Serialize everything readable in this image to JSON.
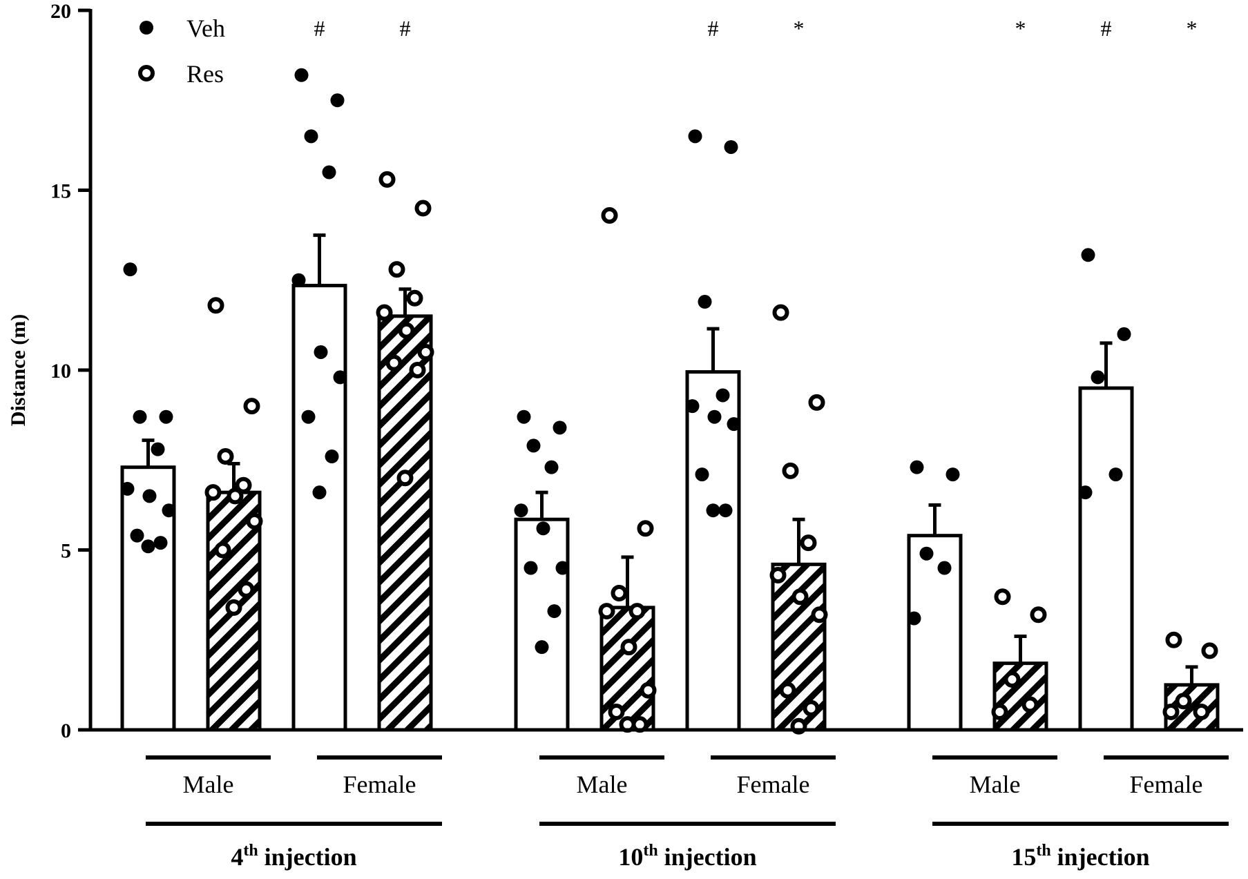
{
  "chart_data": {
    "type": "bar",
    "ylabel": "Distance (m)",
    "ylim": [
      0,
      20
    ],
    "yticks": [
      0,
      5,
      10,
      15,
      20
    ],
    "legend": {
      "position": "top-left",
      "entries": [
        {
          "name": "Veh",
          "marker": "filled-circle"
        },
        {
          "name": "Res",
          "marker": "open-circle"
        }
      ]
    },
    "injections": [
      {
        "label_prefix": "4",
        "label_sup": "th",
        "label_suffix": " injection",
        "sexes": [
          {
            "label": "Male",
            "bars": [
              {
                "treatment": "Veh",
                "mean": 7.3,
                "sem": 0.75,
                "significance": "",
                "points": [
                  12.8,
                  8.7,
                  8.7,
                  7.8,
                  6.7,
                  6.5,
                  6.1,
                  5.4,
                  5.2,
                  5.1
                ]
              },
              {
                "treatment": "Res",
                "mean": 6.6,
                "sem": 0.8,
                "significance": "",
                "points": [
                  11.8,
                  9.0,
                  7.6,
                  6.8,
                  6.6,
                  6.5,
                  5.8,
                  5.0,
                  3.9,
                  3.4
                ]
              }
            ]
          },
          {
            "label": "Female",
            "bars": [
              {
                "treatment": "Veh",
                "mean": 12.35,
                "sem": 1.4,
                "significance": "#",
                "points": [
                  18.2,
                  17.5,
                  16.5,
                  15.5,
                  12.5,
                  10.5,
                  9.8,
                  8.7,
                  7.6,
                  6.6
                ]
              },
              {
                "treatment": "Res",
                "mean": 11.5,
                "sem": 0.75,
                "significance": "#",
                "points": [
                  15.3,
                  14.5,
                  12.8,
                  12.0,
                  11.6,
                  11.1,
                  10.5,
                  10.2,
                  10.0,
                  7.0
                ]
              }
            ]
          }
        ]
      },
      {
        "label_prefix": "10",
        "label_sup": "th",
        "label_suffix": " injection",
        "sexes": [
          {
            "label": "Male",
            "bars": [
              {
                "treatment": "Veh",
                "mean": 5.85,
                "sem": 0.75,
                "significance": "",
                "points": [
                  8.7,
                  8.4,
                  7.9,
                  7.3,
                  6.1,
                  5.6,
                  4.5,
                  4.5,
                  3.3,
                  2.3
                ]
              },
              {
                "treatment": "Res",
                "mean": 3.4,
                "sem": 1.4,
                "significance": "",
                "points": [
                  14.3,
                  5.6,
                  3.8,
                  3.3,
                  3.3,
                  2.3,
                  1.1,
                  0.5,
                  0.15,
                  0.15
                ]
              }
            ]
          },
          {
            "label": "Female",
            "bars": [
              {
                "treatment": "Veh",
                "mean": 9.95,
                "sem": 1.2,
                "significance": "#",
                "points": [
                  16.5,
                  16.2,
                  11.9,
                  9.3,
                  9.0,
                  8.7,
                  8.5,
                  7.1,
                  6.1,
                  6.1
                ]
              },
              {
                "treatment": "Res",
                "mean": 4.6,
                "sem": 1.25,
                "significance": "*",
                "points": [
                  11.6,
                  9.1,
                  7.2,
                  5.2,
                  4.3,
                  3.7,
                  3.2,
                  1.1,
                  0.6,
                  0.1
                ]
              }
            ]
          }
        ]
      },
      {
        "label_prefix": "15",
        "label_sup": "th",
        "label_suffix": " injection",
        "sexes": [
          {
            "label": "Male",
            "bars": [
              {
                "treatment": "Veh",
                "mean": 5.4,
                "sem": 0.85,
                "significance": "",
                "points": [
                  7.3,
                  7.1,
                  4.9,
                  4.5,
                  3.1
                ]
              },
              {
                "treatment": "Res",
                "mean": 1.85,
                "sem": 0.75,
                "significance": "*",
                "points": [
                  3.7,
                  3.2,
                  1.4,
                  0.7,
                  0.5
                ]
              }
            ]
          },
          {
            "label": "Female",
            "bars": [
              {
                "treatment": "Veh",
                "mean": 9.5,
                "sem": 1.25,
                "significance": "#",
                "points": [
                  13.2,
                  11.0,
                  9.8,
                  7.1,
                  6.6
                ]
              },
              {
                "treatment": "Res",
                "mean": 1.25,
                "sem": 0.5,
                "significance": "*",
                "points": [
                  2.5,
                  2.2,
                  0.8,
                  0.5,
                  0.5
                ]
              }
            ]
          }
        ]
      }
    ]
  }
}
